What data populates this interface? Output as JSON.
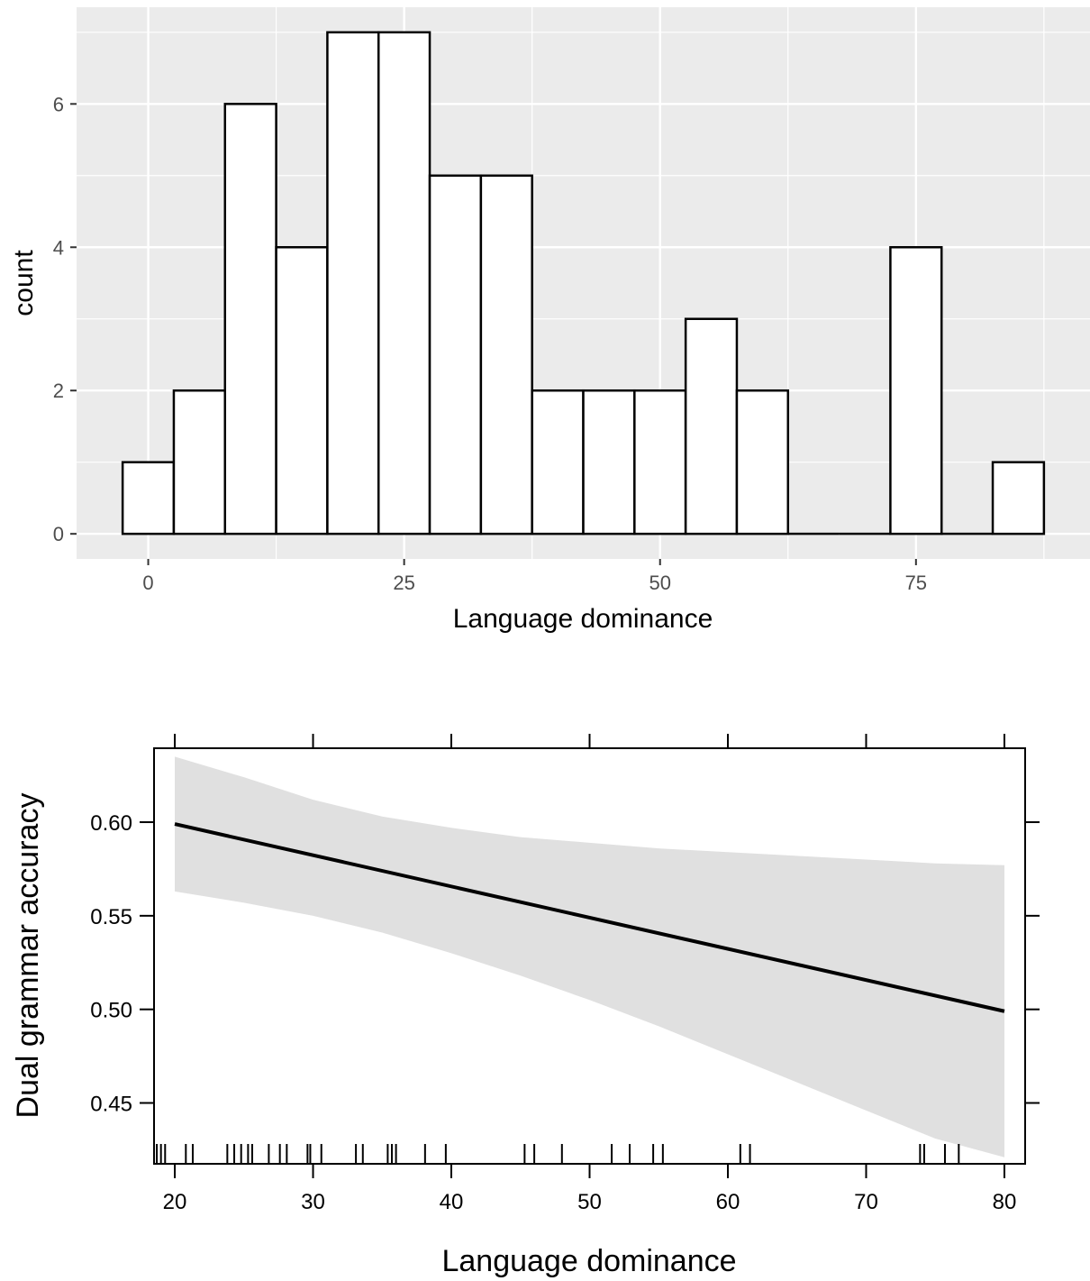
{
  "chart_data": [
    {
      "type": "bar",
      "subtype": "histogram",
      "xlabel": "Language dominance",
      "ylabel": "count",
      "bin_width": 5,
      "bin_centers": [
        0,
        5,
        10,
        15,
        20,
        25,
        30,
        35,
        40,
        45,
        50,
        55,
        60,
        65,
        70,
        75,
        80,
        85
      ],
      "values": [
        1,
        2,
        6,
        4,
        7,
        7,
        5,
        5,
        2,
        2,
        2,
        3,
        2,
        0,
        0,
        4,
        0,
        1
      ],
      "xticks": [
        0,
        25,
        50,
        75
      ],
      "yticks": [
        0,
        2,
        4,
        6
      ],
      "xlim": [
        -7,
        92
      ],
      "ylim": [
        -0.35,
        7.35
      ],
      "grid": true,
      "colors": {
        "panel": "#ebebeb",
        "grid": "#ffffff",
        "bar_fill": "#ffffff",
        "bar_stroke": "#000000"
      }
    },
    {
      "type": "line",
      "subtype": "effect plot with confidence band and rug",
      "xlabel": "Language dominance",
      "ylabel": "Dual grammar accuracy",
      "x": [
        20,
        80
      ],
      "series": [
        {
          "x": [
            20,
            80
          ],
          "y": [
            0.599,
            0.499
          ]
        }
      ],
      "band": {
        "x": [
          20,
          25,
          30,
          35,
          40,
          45,
          50,
          55,
          60,
          65,
          70,
          75,
          80
        ],
        "lower": [
          0.563,
          0.557,
          0.55,
          0.541,
          0.53,
          0.518,
          0.505,
          0.491,
          0.476,
          0.461,
          0.446,
          0.431,
          0.421
        ],
        "upper": [
          0.635,
          0.624,
          0.612,
          0.603,
          0.597,
          0.592,
          0.589,
          0.586,
          0.584,
          0.582,
          0.58,
          0.578,
          0.577
        ]
      },
      "rug": [
        18.7,
        19.0,
        19.3,
        20.8,
        21.3,
        23.8,
        24.3,
        24.8,
        25.3,
        25.6,
        26.8,
        27.6,
        28.1,
        29.6,
        29.8,
        30.6,
        33.1,
        33.6,
        35.4,
        35.7,
        36.0,
        38.1,
        39.6,
        45.3,
        46.0,
        48.0,
        51.6,
        52.9,
        54.6,
        55.3,
        60.9,
        61.6,
        73.9,
        74.2,
        75.7,
        76.7
      ],
      "xticks": [
        20,
        30,
        40,
        50,
        60,
        70,
        80
      ],
      "yticks": [
        0.45,
        0.5,
        0.55,
        0.6
      ],
      "xlim": [
        18.5,
        81.5
      ],
      "ylim": [
        0.4175,
        0.6395
      ],
      "grid": false,
      "colors": {
        "band": "#e0e0e0",
        "line": "#000000",
        "frame": "#000000"
      }
    }
  ]
}
